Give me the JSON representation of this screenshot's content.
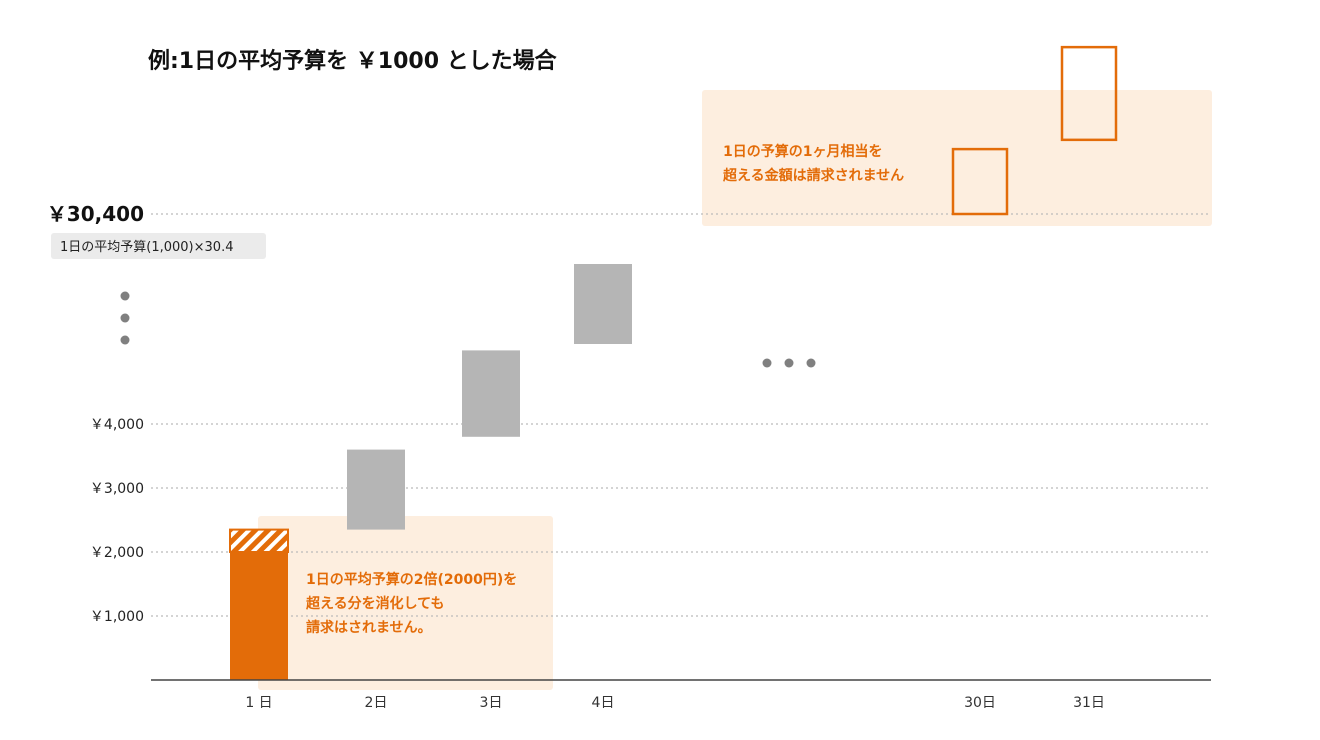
{
  "chart_data": {
    "type": "bar",
    "title": "例:1日の平均予算を ￥1000 とした場合",
    "categories": [
      "1 日",
      "2日",
      "3日",
      "4日",
      "30日",
      "31日"
    ],
    "bars": [
      {
        "category": "1 日",
        "from": 0,
        "to": 2000,
        "kind": "charged"
      },
      {
        "category": "1 日",
        "from": 2000,
        "to": 2350,
        "kind": "over_limit_hatched"
      },
      {
        "category": "2日",
        "from": 2350,
        "to": 3600,
        "kind": "consumed"
      },
      {
        "category": "3日",
        "from": 3800,
        "to": 5150,
        "kind": "consumed"
      },
      {
        "category": "4日",
        "from": 5250,
        "to": 6500,
        "kind": "consumed"
      }
    ],
    "over_limit_boxes": [
      {
        "category": "30日",
        "from": 30400,
        "to": 31100
      },
      {
        "category": "31日",
        "from": 31200,
        "to": 32200
      }
    ],
    "y_ticks": [
      {
        "value": 1000,
        "label": "￥1,000"
      },
      {
        "value": 2000,
        "label": "￥2,000"
      },
      {
        "value": 3000,
        "label": "￥3,000"
      },
      {
        "value": 4000,
        "label": "￥4,000"
      }
    ],
    "cap_line": {
      "value": 30400,
      "label": "￥30,400",
      "sublabel": "1日の平均予算(1,000)×30.4"
    },
    "annotations": [
      {
        "text_lines": [
          "1日の平均予算の2倍(2000円)を",
          "超える分を消化しても",
          "請求はされません。"
        ]
      },
      {
        "text_lines": [
          "1日の予算の1ヶ月相当を",
          "超える金額は請求されません"
        ]
      }
    ],
    "grid": true,
    "colors": {
      "charged": "#E36C09",
      "consumed": "#B5B5B5",
      "highlight_bg": "#FDEEDF",
      "note_text": "#E36C09",
      "gridline": "#BBBBBB",
      "axis": "#444444",
      "ellipsis_dots": "#808080",
      "sublabel_bg": "#EBEBEB"
    }
  }
}
